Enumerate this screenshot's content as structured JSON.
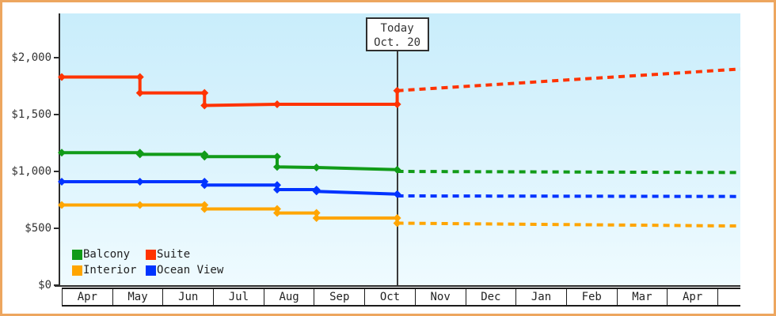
{
  "window": {
    "border_color": "#eda65f",
    "background_color": "#ffffff",
    "plot_gradient_top": "#c9edfb",
    "plot_gradient_bottom": "#effbff"
  },
  "today_marker": {
    "line1": "Today",
    "line2": "Oct. 20"
  },
  "y_axis": {
    "tick_labels": [
      "$2,000",
      "$1,500",
      "$1,000",
      "$500",
      "$0"
    ],
    "tick_values": [
      2000,
      1500,
      1000,
      500,
      0
    ]
  },
  "x_axis": {
    "months": [
      "Apr",
      "May",
      "Jun",
      "Jul",
      "Aug",
      "Sep",
      "Oct",
      "Nov",
      "Dec",
      "Jan",
      "Feb",
      "Mar",
      "Apr"
    ]
  },
  "legend": {
    "items": [
      {
        "label": "Balcony",
        "color": "#119b18"
      },
      {
        "label": "Suite",
        "color": "#ff3300"
      },
      {
        "label": "Interior",
        "color": "#ffa500"
      },
      {
        "label": "Ocean View",
        "color": "#0033ff"
      }
    ]
  },
  "chart_data": {
    "type": "line",
    "subtype": "stepped price history with dashed forecast",
    "x_unit": "months offset from Apr (0 = Apr 1, fractional = day of month)",
    "ylim": [
      0,
      2000
    ],
    "y_ticks": [
      0,
      500,
      1000,
      1500,
      2000
    ],
    "today": {
      "label": "Oct. 20",
      "m": 6.65
    },
    "x_end": 13.45,
    "series": [
      {
        "name": "Balcony",
        "color": "#119b18",
        "solid": [
          [
            0,
            1165
          ],
          [
            1.55,
            1165
          ],
          [
            1.55,
            1150
          ],
          [
            2.83,
            1150
          ],
          [
            2.83,
            1130
          ],
          [
            4.27,
            1130
          ],
          [
            4.27,
            1040
          ],
          [
            5.05,
            1035
          ],
          [
            6.65,
            1015
          ]
        ],
        "forecast": [
          [
            6.65,
            1000
          ],
          [
            13.45,
            990
          ]
        ]
      },
      {
        "name": "Suite",
        "color": "#ff3300",
        "solid": [
          [
            0,
            1830
          ],
          [
            1.55,
            1830
          ],
          [
            1.55,
            1690
          ],
          [
            2.83,
            1690
          ],
          [
            2.83,
            1580
          ],
          [
            4.27,
            1590
          ],
          [
            6.65,
            1590
          ],
          [
            6.65,
            1710
          ]
        ],
        "forecast": [
          [
            6.65,
            1710
          ],
          [
            13.45,
            1900
          ]
        ]
      },
      {
        "name": "Interior",
        "color": "#ffa500",
        "solid": [
          [
            0,
            705
          ],
          [
            1.55,
            705
          ],
          [
            2.83,
            705
          ],
          [
            2.83,
            670
          ],
          [
            4.27,
            670
          ],
          [
            4.27,
            635
          ],
          [
            5.05,
            635
          ],
          [
            5.05,
            590
          ],
          [
            6.65,
            590
          ],
          [
            6.65,
            545
          ]
        ],
        "forecast": [
          [
            6.65,
            545
          ],
          [
            13.45,
            520
          ]
        ]
      },
      {
        "name": "Ocean View",
        "color": "#0033ff",
        "solid": [
          [
            0,
            910
          ],
          [
            1.55,
            910
          ],
          [
            2.83,
            910
          ],
          [
            2.83,
            880
          ],
          [
            4.27,
            880
          ],
          [
            4.27,
            840
          ],
          [
            5.05,
            840
          ],
          [
            5.05,
            825
          ],
          [
            6.65,
            800
          ]
        ],
        "forecast": [
          [
            6.65,
            785
          ],
          [
            13.45,
            780
          ]
        ]
      }
    ]
  }
}
